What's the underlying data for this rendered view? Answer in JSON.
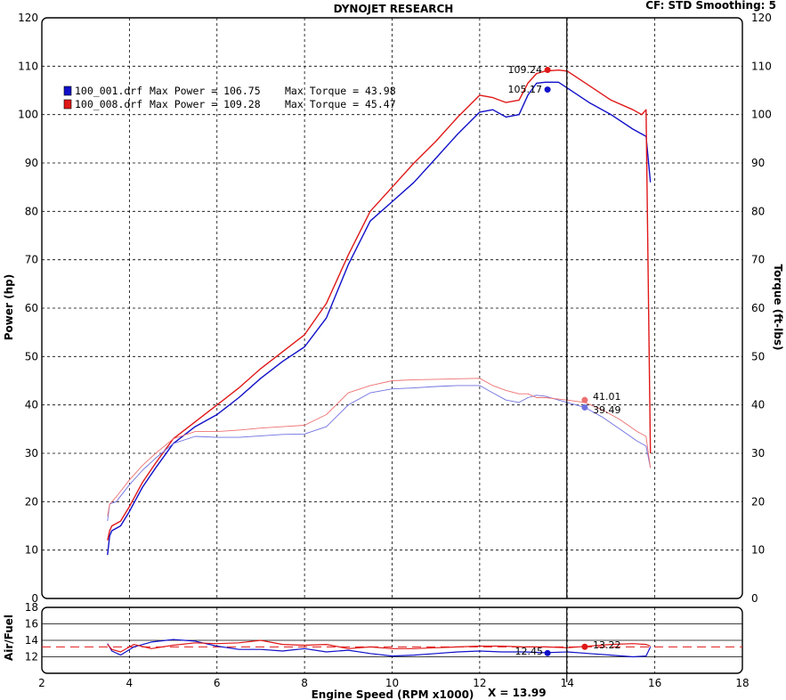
{
  "header": {
    "title": "DYNOJET RESEARCH",
    "right_info": "CF: STD  Smoothing: 5"
  },
  "legend": [
    {
      "file": "100_001.drf",
      "power_label": "Max Power = 106.75",
      "torque_label": "Max Torque = 43.98",
      "color": "#1010c8"
    },
    {
      "file": "100_008.drf",
      "power_label": "Max Power = 109.28",
      "torque_label": "Max Torque = 45.47",
      "color": "#e01818"
    }
  ],
  "annotations": {
    "power_red": "109.24",
    "power_blue": "105.17",
    "torque_red": "41.01",
    "torque_blue": "39.49",
    "af_red": "13.22",
    "af_blue": "12.45",
    "cursor_readout": "X = 13.99"
  },
  "chart_data": [
    {
      "type": "line",
      "panel": "main",
      "ylabel": "Power (hp)",
      "ylabel_right": "Torque (ft-lbs)",
      "xlim": [
        2,
        18
      ],
      "ylim": [
        0,
        120
      ],
      "yticks": [
        "0",
        "10",
        "20",
        "30",
        "40",
        "50",
        "60",
        "70",
        "80",
        "90",
        "100",
        "110",
        "120"
      ],
      "grid": true,
      "cursor_x": 13.99,
      "series": [
        {
          "name": "100_001.drf Max Power = 106.75",
          "kind": "power",
          "color": "#1010c8",
          "x": [
            3.5,
            3.55,
            3.6,
            3.8,
            4.0,
            4.3,
            4.6,
            5.0,
            5.5,
            6.0,
            6.5,
            7.0,
            7.5,
            8.0,
            8.5,
            9.0,
            9.5,
            10.0,
            10.5,
            11.0,
            11.5,
            12.0,
            12.3,
            12.6,
            12.9,
            13.1,
            13.3,
            13.5,
            13.8,
            14.0,
            14.5,
            15.0,
            15.5,
            15.8,
            15.9
          ],
          "y": [
            9,
            13,
            14,
            15,
            18,
            23,
            27,
            32,
            35.5,
            38,
            41.5,
            45.5,
            49,
            52,
            58,
            69,
            78,
            82,
            86,
            91,
            96,
            100.5,
            101,
            99.5,
            100,
            104,
            106.5,
            106.7,
            106.7,
            105.5,
            102.5,
            100,
            97,
            95.5,
            86
          ]
        },
        {
          "name": "100_008.drf Max Power = 109.28",
          "kind": "power",
          "color": "#e01818",
          "x": [
            3.5,
            3.55,
            3.6,
            3.8,
            4.0,
            4.3,
            4.6,
            5.0,
            5.5,
            6.0,
            6.5,
            7.0,
            7.5,
            8.0,
            8.5,
            9.0,
            9.5,
            10.0,
            10.5,
            11.0,
            11.5,
            12.0,
            12.3,
            12.6,
            12.9,
            13.1,
            13.3,
            13.5,
            13.8,
            14.0,
            14.5,
            15.0,
            15.5,
            15.7,
            15.8,
            15.9
          ],
          "y": [
            12,
            14,
            15,
            16,
            19,
            24,
            28,
            33,
            36.5,
            40,
            43.5,
            47.5,
            51,
            54.5,
            61,
            71,
            80,
            85,
            90,
            94.5,
            99.5,
            104,
            103.5,
            102.5,
            103,
            106.5,
            108.5,
            109,
            109.2,
            109,
            106,
            103,
            101,
            100,
            101,
            30
          ]
        },
        {
          "name": "100_001.drf Max Torque = 43.98",
          "kind": "torque",
          "color": "#7070e0",
          "x": [
            3.5,
            3.55,
            3.7,
            4.0,
            4.3,
            4.6,
            5.0,
            5.5,
            6.0,
            6.5,
            7.0,
            7.5,
            8.0,
            8.5,
            9.0,
            9.5,
            10.0,
            10.5,
            11.0,
            11.5,
            12.0,
            12.3,
            12.6,
            12.9,
            13.1,
            13.3,
            13.5,
            13.8,
            14.0,
            14.4,
            14.8,
            15.2,
            15.6,
            15.8,
            15.9
          ],
          "y": [
            16,
            19.5,
            20,
            23.5,
            26.5,
            29,
            32,
            33.5,
            33.3,
            33.3,
            33.6,
            33.9,
            34,
            35.5,
            40,
            42.5,
            43.3,
            43.5,
            43.8,
            44,
            44,
            42.5,
            41,
            40.5,
            41.5,
            42,
            41.8,
            41,
            40.5,
            39.5,
            37.5,
            35,
            32.5,
            31.5,
            27
          ]
        },
        {
          "name": "100_008.drf Max Torque = 45.47",
          "kind": "torque",
          "color": "#ee7070",
          "x": [
            3.5,
            3.55,
            3.7,
            4.0,
            4.3,
            4.6,
            5.0,
            5.5,
            6.0,
            6.5,
            7.0,
            7.5,
            8.0,
            8.5,
            9.0,
            9.5,
            10.0,
            10.5,
            11.0,
            11.5,
            12.0,
            12.3,
            12.6,
            12.9,
            13.1,
            13.3,
            13.5,
            13.8,
            14.0,
            14.4,
            14.8,
            15.2,
            15.6,
            15.8,
            15.9
          ],
          "y": [
            17,
            19.5,
            21,
            24.5,
            27.5,
            30,
            33,
            34.5,
            34.5,
            34.8,
            35.2,
            35.5,
            35.8,
            38,
            42.5,
            44,
            45,
            45.2,
            45.3,
            45.4,
            45.5,
            44,
            43,
            42.3,
            42.3,
            41.5,
            41.5,
            41.2,
            41,
            40.5,
            39,
            37,
            34.5,
            33.5,
            27
          ]
        }
      ]
    },
    {
      "type": "line",
      "panel": "air_fuel",
      "ylabel": "Air/Fuel",
      "xlabel": "Engine Speed (RPM x1000)",
      "xlim": [
        2,
        18
      ],
      "ylim": [
        10,
        18
      ],
      "yticks": [
        "10",
        "12",
        "14",
        "16",
        "18"
      ],
      "xticks": [
        "2",
        "4",
        "6",
        "8",
        "10",
        "12",
        "14",
        "16",
        "18"
      ],
      "reference_line": 13.2,
      "grid": true,
      "series": [
        {
          "name": "100_001.drf",
          "color": "#1010c8",
          "x": [
            3.5,
            3.6,
            3.8,
            4.1,
            4.5,
            5.0,
            5.5,
            6.0,
            6.5,
            7.0,
            7.5,
            8.0,
            8.5,
            9.0,
            9.5,
            10.0,
            10.5,
            11.0,
            11.5,
            12.0,
            12.5,
            13.0,
            13.5,
            14.0,
            14.5,
            15.0,
            15.5,
            15.8,
            15.9
          ],
          "y": [
            13.6,
            12.7,
            12.2,
            13.2,
            13.8,
            14.1,
            13.9,
            13.3,
            12.9,
            12.9,
            12.7,
            13.0,
            12.6,
            12.8,
            12.4,
            12.1,
            12.2,
            12.4,
            12.6,
            12.7,
            12.6,
            12.6,
            12.5,
            12.6,
            12.4,
            12.2,
            12.0,
            12.1,
            13.2
          ]
        },
        {
          "name": "100_008.drf",
          "color": "#e01818",
          "x": [
            3.5,
            3.6,
            3.8,
            4.1,
            4.5,
            5.0,
            5.5,
            6.0,
            6.5,
            7.0,
            7.5,
            8.0,
            8.5,
            9.0,
            9.5,
            10.0,
            10.5,
            11.0,
            11.5,
            12.0,
            12.5,
            13.0,
            13.5,
            14.0,
            14.5,
            15.0,
            15.5,
            15.8,
            15.9
          ],
          "y": [
            13.5,
            12.9,
            12.6,
            13.5,
            13.0,
            13.4,
            13.7,
            13.6,
            13.7,
            14.0,
            13.5,
            13.4,
            13.5,
            13.0,
            13.2,
            13.0,
            13.0,
            13.1,
            13.2,
            13.3,
            13.3,
            13.2,
            13.2,
            13.1,
            13.3,
            13.5,
            13.6,
            13.5,
            13.3
          ]
        }
      ]
    }
  ]
}
